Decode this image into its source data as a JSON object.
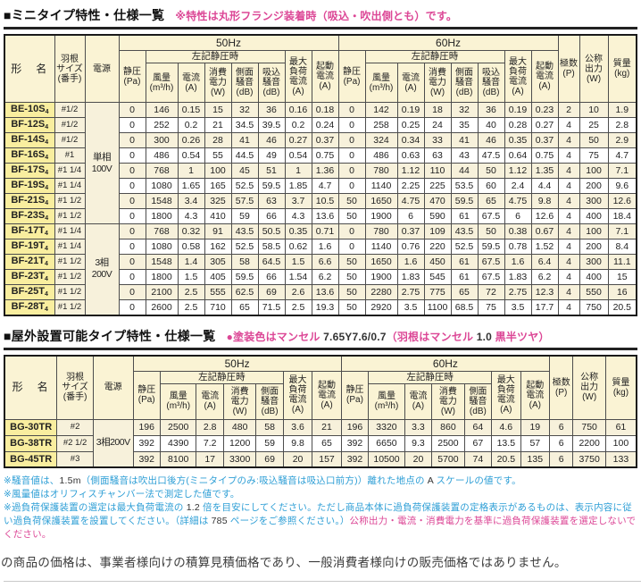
{
  "section1": {
    "title": "■ミニタイプ特性・仕様一覧",
    "note_segments": [
      {
        "t": "※特性は丸形フランジ装着時（吸込・吹出側とも）です。",
        "c": "magenta"
      }
    ]
  },
  "section2": {
    "title": "■屋外設置可能タイプ特性・仕様一覧",
    "note_segments": [
      {
        "t": "●塗装色はマンセル ",
        "c": "magenta"
      },
      {
        "t": "7.65Y7.6/0.7",
        "c": "dark"
      },
      {
        "t": "（羽根はマンセル ",
        "c": "magenta"
      },
      {
        "t": "1.0",
        "c": "dark"
      },
      {
        "t": " 黒半ツヤ）",
        "c": "magenta"
      }
    ]
  },
  "headers": {
    "model": "形　名",
    "blade_size": "羽根\nサイズ\n(番手)",
    "power": "電源",
    "hz50": "50Hz",
    "hz60": "60Hz",
    "at_static": "左記静圧時",
    "static_pressure": "静圧\n(Pa)",
    "airflow": "風量\n(m³/h)",
    "current": "電流\n(A)",
    "power_consumption": "消費\n電力\n(W)",
    "side_noise": "側面\n騒音\n(dB)",
    "suction_noise": "吸込\n騒音\n(dB)",
    "max_load_current": "最大\n負荷\n電流\n(A)",
    "starting_current": "起動\n電流\n(A)",
    "poles": "極数\n(P)",
    "rated_output": "公称\n出力\n(W)",
    "mass": "質量\n(kg)"
  },
  "table1": {
    "has_suction": true,
    "power_groups": [
      {
        "label": "単相\n100V",
        "span": 8
      },
      {
        "label": "3相\n200V",
        "span": 6
      }
    ],
    "rows": [
      {
        "model": "BE-10S",
        "sub": "4",
        "size": "#1/2",
        "v": [
          "0",
          "146",
          "0.15",
          "15",
          "32",
          "36",
          "0.16",
          "0.18",
          "0",
          "142",
          "0.19",
          "18",
          "32",
          "36",
          "0.19",
          "0.23",
          "2",
          "10",
          "1.9"
        ]
      },
      {
        "model": "BF-12S",
        "sub": "4",
        "size": "#1/2",
        "v": [
          "0",
          "252",
          "0.2",
          "21",
          "34.5",
          "39.5",
          "0.2",
          "0.24",
          "0",
          "258",
          "0.25",
          "24",
          "35",
          "40",
          "0.28",
          "0.27",
          "4",
          "25",
          "2.8"
        ]
      },
      {
        "model": "BF-14S",
        "sub": "4",
        "size": "#1/2",
        "v": [
          "0",
          "300",
          "0.26",
          "28",
          "41",
          "46",
          "0.27",
          "0.37",
          "0",
          "324",
          "0.34",
          "33",
          "41",
          "46",
          "0.35",
          "0.37",
          "4",
          "50",
          "2.9"
        ]
      },
      {
        "model": "BF-16S",
        "sub": "4",
        "size": "#1",
        "v": [
          "0",
          "486",
          "0.54",
          "55",
          "44.5",
          "49",
          "0.54",
          "0.75",
          "0",
          "486",
          "0.63",
          "63",
          "43",
          "47.5",
          "0.64",
          "0.75",
          "4",
          "75",
          "4.7"
        ]
      },
      {
        "model": "BF-17S",
        "sub": "4",
        "size": "#1 1/4",
        "v": [
          "0",
          "768",
          "1",
          "100",
          "45",
          "51",
          "1",
          "1.36",
          "0",
          "780",
          "1.12",
          "110",
          "44",
          "50",
          "1.12",
          "1.35",
          "4",
          "100",
          "7.1"
        ]
      },
      {
        "model": "BF-19S",
        "sub": "4",
        "size": "#1 1/4",
        "v": [
          "0",
          "1080",
          "1.65",
          "165",
          "52.5",
          "59.5",
          "1.85",
          "4.7",
          "0",
          "1140",
          "2.25",
          "225",
          "53.5",
          "60",
          "2.4",
          "4.4",
          "4",
          "200",
          "9.6"
        ]
      },
      {
        "model": "BF-21S",
        "sub": "4",
        "size": "#1 1/2",
        "v": [
          "0",
          "1548",
          "3.4",
          "325",
          "57.5",
          "63",
          "3.7",
          "10.5",
          "50",
          "1650",
          "4.75",
          "470",
          "59.5",
          "65",
          "4.75",
          "9.8",
          "4",
          "300",
          "12.6"
        ]
      },
      {
        "model": "BF-23S",
        "sub": "4",
        "size": "#1 1/2",
        "v": [
          "0",
          "1800",
          "4.3",
          "410",
          "59",
          "66",
          "4.3",
          "13.6",
          "50",
          "1900",
          "6",
          "590",
          "61",
          "67.5",
          "6",
          "12.6",
          "4",
          "400",
          "18.4"
        ]
      },
      {
        "model": "BF-17T",
        "sub": "4",
        "size": "#1 1/4",
        "v": [
          "0",
          "768",
          "0.32",
          "91",
          "43.5",
          "50.5",
          "0.35",
          "0.71",
          "0",
          "780",
          "0.37",
          "109",
          "43.5",
          "50",
          "0.38",
          "0.67",
          "4",
          "100",
          "7.1"
        ]
      },
      {
        "model": "BF-19T",
        "sub": "4",
        "size": "#1 1/4",
        "v": [
          "0",
          "1080",
          "0.58",
          "162",
          "52.5",
          "58.5",
          "0.62",
          "1.6",
          "0",
          "1140",
          "0.76",
          "220",
          "52.5",
          "59.5",
          "0.78",
          "1.52",
          "4",
          "200",
          "8.4"
        ]
      },
      {
        "model": "BF-21T",
        "sub": "4",
        "size": "#1 1/2",
        "v": [
          "0",
          "1548",
          "1.4",
          "305",
          "58",
          "64.5",
          "1.5",
          "6.6",
          "50",
          "1650",
          "1.6",
          "450",
          "61",
          "67.5",
          "1.6",
          "6.4",
          "4",
          "300",
          "11.1"
        ]
      },
      {
        "model": "BF-23T",
        "sub": "4",
        "size": "#1 1/2",
        "v": [
          "0",
          "1800",
          "1.5",
          "405",
          "59.5",
          "66",
          "1.54",
          "6.2",
          "50",
          "1900",
          "1.83",
          "545",
          "61",
          "67.5",
          "1.83",
          "6.2",
          "4",
          "400",
          "15"
        ]
      },
      {
        "model": "BF-25T",
        "sub": "4",
        "size": "#1 1/2",
        "v": [
          "0",
          "2100",
          "2.5",
          "555",
          "62.5",
          "69",
          "2.6",
          "13.6",
          "50",
          "2280",
          "2.75",
          "775",
          "65",
          "72",
          "2.75",
          "12.3",
          "4",
          "550",
          "16"
        ]
      },
      {
        "model": "BF-28T",
        "sub": "4",
        "size": "#1 1/2",
        "v": [
          "0",
          "2600",
          "2.5",
          "710",
          "65",
          "71.5",
          "2.5",
          "19.3",
          "50",
          "2920",
          "3.5",
          "1100",
          "68.5",
          "75",
          "3.5",
          "17.7",
          "4",
          "750",
          "20.5"
        ]
      }
    ]
  },
  "table2": {
    "has_suction": false,
    "power_groups": [
      {
        "label": "3相200V",
        "span": 3
      }
    ],
    "rows": [
      {
        "model": "BG-30TR",
        "sub": "",
        "size": "#2",
        "v": [
          "196",
          "2500",
          "2.8",
          "480",
          "58",
          "3.6",
          "21",
          "196",
          "3320",
          "3.3",
          "860",
          "64",
          "4.6",
          "19",
          "6",
          "750",
          "61"
        ]
      },
      {
        "model": "BG-38TR",
        "sub": "",
        "size": "#2 1/2",
        "v": [
          "392",
          "4390",
          "7.2",
          "1200",
          "59",
          "9.8",
          "65",
          "392",
          "6650",
          "9.3",
          "2500",
          "67",
          "13.5",
          "57",
          "6",
          "2200",
          "100"
        ]
      },
      {
        "model": "BG-45TR",
        "sub": "",
        "size": "#3",
        "v": [
          "392",
          "8100",
          "17",
          "3300",
          "69",
          "20",
          "157",
          "392",
          "10500",
          "20",
          "5700",
          "74",
          "20.5",
          "135",
          "6",
          "3750",
          "133"
        ]
      }
    ]
  },
  "footnotes": [
    {
      "segments": [
        {
          "t": "※騒音値は、",
          "c": "blue"
        },
        {
          "t": "1.5m",
          "c": "dark"
        },
        {
          "t": "（側面騒音は吹出口後方(ミニタイプのみ:吸込騒音は吸込口前方)）離れた地点の ",
          "c": "blue"
        },
        {
          "t": "A",
          "c": "dark"
        },
        {
          "t": " スケールの値です。",
          "c": "blue"
        }
      ]
    },
    {
      "segments": [
        {
          "t": "※風量値はオリフィスチャンバー法で測定した値です。",
          "c": "blue"
        }
      ]
    },
    {
      "segments": [
        {
          "t": "※過負荷保護装置の選定は最大負荷電流の ",
          "c": "blue"
        },
        {
          "t": "1.2",
          "c": "dark"
        },
        {
          "t": " 倍を目安にしてください。ただし商品本体に過負荷保護装置の定格表示があるものは、表示内容に従い過負荷保護装置を設置してください。（詳細は ",
          "c": "blue"
        },
        {
          "t": "785",
          "c": "dark"
        },
        {
          "t": " ページをご参照ください。）",
          "c": "blue"
        },
        {
          "t": "公称出力・電流・消費電力を基準に過負荷保護装置を選定しないでください。",
          "c": "magenta"
        }
      ]
    }
  ],
  "bottom_note": "の商品の価格は、事業者様向けの積算見積価格であり、一般消費者様向けの販売価格ではありません。"
}
